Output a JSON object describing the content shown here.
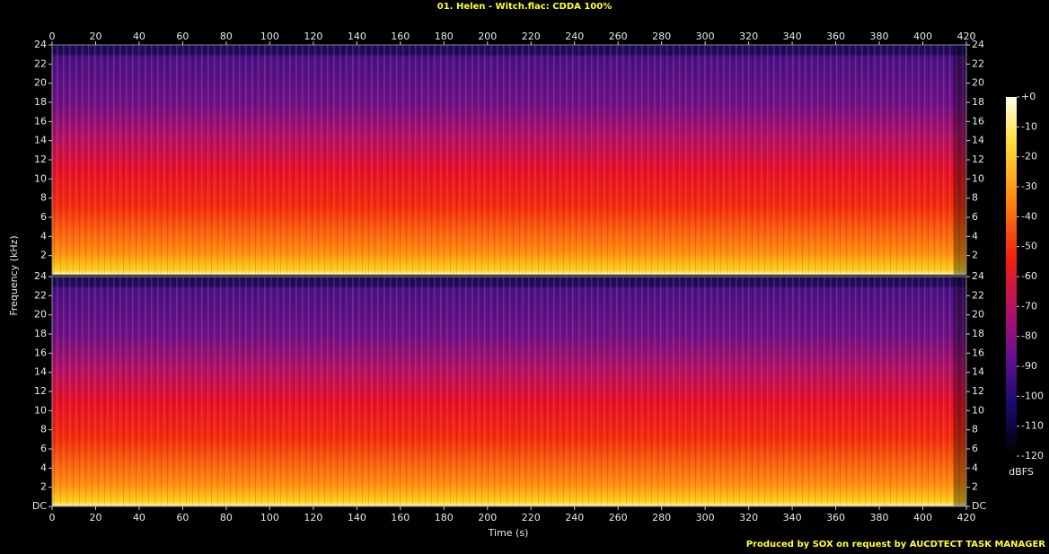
{
  "chart_data": {
    "type": "spectrogram",
    "title": "01. Helen - Witch.flac: CDDA 100%",
    "xlabel": "Time (s)",
    "ylabel": "Frequency (kHz)",
    "xlim": [
      0,
      420
    ],
    "xticks": [
      0,
      20,
      40,
      60,
      80,
      100,
      120,
      140,
      160,
      180,
      200,
      220,
      240,
      260,
      280,
      300,
      320,
      340,
      360,
      380,
      400,
      420
    ],
    "panels": [
      {
        "ylim": [
          0,
          24
        ],
        "yticks": [
          2,
          4,
          6,
          8,
          10,
          12,
          14,
          16,
          18,
          20,
          22,
          24
        ]
      },
      {
        "ylim": [
          0,
          24
        ],
        "yticks": [
          {
            "value": 0,
            "label": "DC"
          },
          2,
          4,
          6,
          8,
          10,
          12,
          14,
          16,
          18,
          20,
          22,
          24
        ]
      }
    ],
    "colorbar": {
      "label": "dBFS",
      "clim": [
        -120,
        0
      ],
      "ticks": [
        {
          "value": 0,
          "label": "+0"
        },
        -10,
        -20,
        -30,
        -40,
        -50,
        -60,
        -70,
        -80,
        -90,
        -100,
        -110,
        -120
      ]
    },
    "footer": "Produced by SOX on request by AUCDTECT TASK MANAGER"
  }
}
